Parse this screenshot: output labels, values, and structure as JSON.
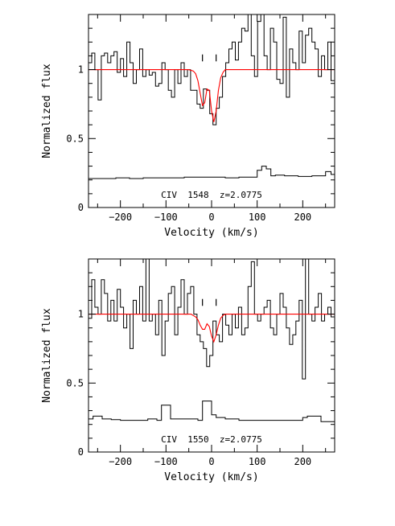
{
  "chart_data": [
    {
      "type": "line",
      "xlabel": "Velocity (km/s)",
      "ylabel": "Normalized flux",
      "annotation": "CIV  1548  z=2.0775",
      "xlim": [
        -270,
        270
      ],
      "ylim": [
        0,
        1.4
      ],
      "x_ticks": [
        -200,
        -100,
        0,
        100,
        200
      ],
      "x_tick_labels": [
        "−200",
        "−100",
        "0",
        "100",
        "200"
      ],
      "y_ticks": [
        0,
        0.5,
        1
      ],
      "y_tick_labels": [
        "0",
        "0.5",
        "1"
      ],
      "component_markers": [
        -20,
        10
      ],
      "series": [
        {
          "role": "flux",
          "color": "#000000",
          "x": [
            -270,
            -263,
            -256,
            -249,
            -242,
            -235,
            -228,
            -221,
            -214,
            -207,
            -200,
            -193,
            -186,
            -179,
            -172,
            -165,
            -158,
            -151,
            -144,
            -137,
            -130,
            -123,
            -116,
            -109,
            -102,
            -95,
            -88,
            -81,
            -74,
            -67,
            -60,
            -53,
            -46,
            -39,
            -32,
            -25,
            -18,
            -11,
            -4,
            3,
            10,
            17,
            24,
            31,
            38,
            45,
            52,
            59,
            66,
            73,
            80,
            87,
            94,
            101,
            108,
            115,
            122,
            129,
            136,
            143,
            150,
            157,
            164,
            171,
            178,
            185,
            192,
            199,
            206,
            213,
            220,
            227,
            234,
            241,
            248,
            255,
            262
          ],
          "y": [
            1.05,
            1.12,
            1.0,
            0.78,
            1.1,
            1.12,
            1.05,
            1.1,
            1.13,
            0.98,
            1.08,
            0.95,
            1.2,
            1.05,
            0.9,
            1.0,
            1.15,
            0.95,
            1.0,
            0.96,
            0.98,
            0.88,
            0.9,
            1.05,
            1.0,
            0.85,
            0.8,
            1.0,
            0.9,
            1.05,
            0.95,
            1.0,
            0.85,
            0.85,
            0.75,
            0.72,
            0.86,
            0.85,
            0.68,
            0.6,
            0.72,
            0.8,
            0.95,
            1.05,
            1.15,
            1.2,
            1.07,
            1.2,
            1.3,
            1.28,
            1.4,
            1.1,
            0.95,
            1.35,
            1.4,
            1.1,
            1.0,
            1.3,
            1.2,
            0.93,
            0.9,
            1.38,
            0.8,
            1.15,
            1.05,
            1.0,
            1.28,
            1.05,
            1.25,
            1.3,
            1.2,
            1.15,
            0.95,
            1.1,
            1.0,
            1.2,
            0.92
          ]
        },
        {
          "role": "model",
          "color": "#ff0000",
          "x": [
            -270,
            -50,
            -40,
            -35,
            -30,
            -25,
            -20,
            -15,
            -10,
            -5,
            0,
            5,
            10,
            15,
            20,
            25,
            30,
            40,
            270
          ],
          "y": [
            1,
            1,
            0.99,
            0.97,
            0.92,
            0.83,
            0.74,
            0.76,
            0.86,
            0.85,
            0.7,
            0.62,
            0.7,
            0.85,
            0.94,
            0.98,
            1.0,
            1,
            1
          ]
        },
        {
          "role": "error",
          "color": "#000000",
          "x": [
            -270,
            -240,
            -210,
            -180,
            -150,
            -120,
            -90,
            -60,
            -30,
            0,
            30,
            60,
            90,
            100,
            110,
            120,
            130,
            140,
            160,
            190,
            220,
            250,
            262
          ],
          "y": [
            0.21,
            0.21,
            0.215,
            0.21,
            0.215,
            0.215,
            0.215,
            0.22,
            0.22,
            0.22,
            0.215,
            0.22,
            0.22,
            0.27,
            0.3,
            0.28,
            0.23,
            0.235,
            0.23,
            0.225,
            0.23,
            0.26,
            0.24
          ]
        }
      ]
    },
    {
      "type": "line",
      "xlabel": "Velocity (km/s)",
      "ylabel": "Normalized flux",
      "annotation": "CIV  1550  z=2.0775",
      "xlim": [
        -270,
        270
      ],
      "ylim": [
        0,
        1.4
      ],
      "x_ticks": [
        -200,
        -100,
        0,
        100,
        200
      ],
      "x_tick_labels": [
        "−200",
        "−100",
        "0",
        "100",
        "200"
      ],
      "y_ticks": [
        0,
        0.5,
        1
      ],
      "y_tick_labels": [
        "0",
        "0.5",
        "1"
      ],
      "component_markers": [
        -20,
        10
      ],
      "series": [
        {
          "role": "flux",
          "color": "#000000",
          "x": [
            -270,
            -263,
            -256,
            -249,
            -242,
            -235,
            -228,
            -221,
            -214,
            -207,
            -200,
            -193,
            -186,
            -179,
            -172,
            -165,
            -158,
            -151,
            -144,
            -137,
            -130,
            -123,
            -116,
            -109,
            -102,
            -95,
            -88,
            -81,
            -74,
            -67,
            -60,
            -53,
            -46,
            -39,
            -32,
            -25,
            -18,
            -11,
            -4,
            3,
            10,
            17,
            24,
            31,
            38,
            45,
            52,
            59,
            66,
            73,
            80,
            87,
            94,
            101,
            108,
            115,
            122,
            129,
            136,
            143,
            150,
            157,
            164,
            171,
            178,
            185,
            192,
            199,
            206,
            213,
            220,
            227,
            234,
            241,
            248,
            255,
            262
          ],
          "y": [
            0.97,
            1.25,
            1.05,
            1.0,
            1.25,
            1.15,
            0.95,
            1.1,
            0.95,
            1.18,
            1.05,
            0.9,
            1.0,
            0.75,
            1.1,
            1.0,
            1.2,
            0.95,
            1.4,
            0.95,
            1.0,
            0.85,
            1.1,
            0.7,
            0.95,
            1.15,
            1.2,
            0.85,
            1.05,
            1.25,
            1.0,
            1.15,
            1.2,
            1.0,
            0.85,
            0.8,
            0.75,
            0.62,
            0.7,
            0.95,
            0.85,
            0.8,
            1.0,
            0.92,
            0.85,
            1.0,
            0.9,
            1.05,
            0.85,
            0.9,
            1.2,
            1.38,
            1.0,
            0.95,
            1.0,
            1.05,
            1.1,
            0.9,
            0.85,
            1.0,
            1.15,
            1.05,
            0.9,
            0.78,
            0.85,
            0.95,
            1.1,
            0.53,
            1.4,
            1.0,
            0.95,
            1.05,
            1.15,
            0.95,
            1.0,
            1.05,
            0.98
          ]
        },
        {
          "role": "model",
          "color": "#ff0000",
          "x": [
            -270,
            -45,
            -40,
            -35,
            -30,
            -25,
            -20,
            -15,
            -10,
            -5,
            0,
            5,
            10,
            15,
            20,
            25,
            30,
            35,
            270
          ],
          "y": [
            1,
            1,
            0.99,
            0.98,
            0.96,
            0.92,
            0.89,
            0.89,
            0.93,
            0.91,
            0.84,
            0.8,
            0.85,
            0.92,
            0.97,
            0.99,
            1.0,
            1,
            1
          ]
        },
        {
          "role": "error",
          "color": "#000000",
          "x": [
            -270,
            -260,
            -240,
            -220,
            -200,
            -180,
            -150,
            -140,
            -120,
            -110,
            -100,
            -90,
            -60,
            -30,
            -20,
            -10,
            0,
            10,
            30,
            60,
            90,
            120,
            150,
            190,
            200,
            210,
            240,
            262
          ],
          "y": [
            0.24,
            0.26,
            0.24,
            0.235,
            0.23,
            0.23,
            0.23,
            0.24,
            0.23,
            0.34,
            0.34,
            0.24,
            0.24,
            0.23,
            0.37,
            0.37,
            0.27,
            0.25,
            0.24,
            0.23,
            0.23,
            0.23,
            0.23,
            0.23,
            0.25,
            0.26,
            0.22,
            0.22
          ]
        }
      ]
    }
  ]
}
